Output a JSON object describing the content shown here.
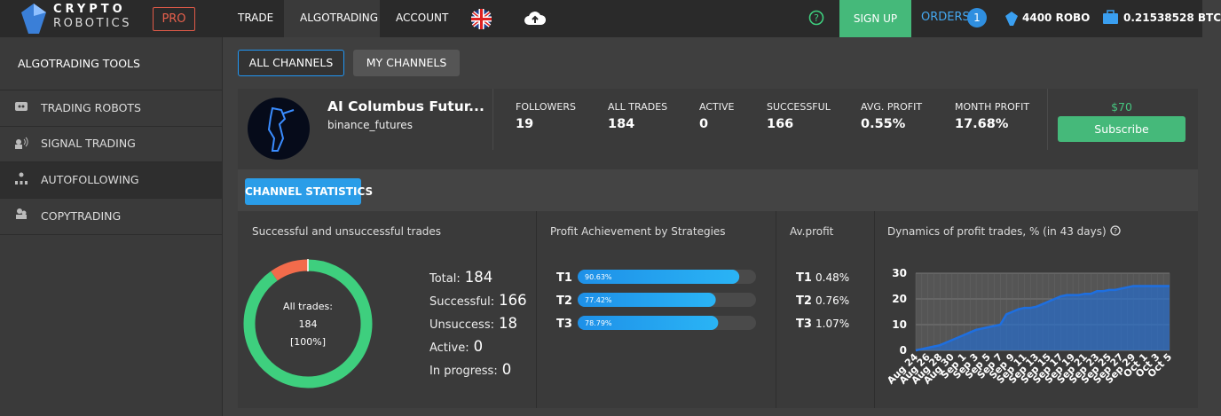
{
  "header": {
    "logo_top": "CRYPTO",
    "logo_bottom": "ROBOTICS",
    "pro": "PRO",
    "nav": [
      "TRADE",
      "ALGOTRADING",
      "ACCOUNT"
    ],
    "sign_up": "SIGN UP",
    "orders": "ORDERS",
    "orders_count": 1,
    "robo": "4400 ROBO",
    "btc": "0.21538528 BTC"
  },
  "sidebar": {
    "title": "ALGOTRADING TOOLS",
    "items": [
      "TRADING ROBOTS",
      "SIGNAL TRADING",
      "AUTOFOLLOWING",
      "COPYTRADING"
    ]
  },
  "tabs": [
    "ALL CHANNELS",
    "MY CHANNELS"
  ],
  "channel": {
    "name": "AI Columbus Futur...",
    "exchange": "binance_futures",
    "stats": [
      {
        "label": "FOLLOWERS",
        "value": "19"
      },
      {
        "label": "ALL TRADES",
        "value": "184"
      },
      {
        "label": "ACTIVE",
        "value": "0"
      },
      {
        "label": "SUCCESSFUL",
        "value": "166"
      },
      {
        "label": "AVG. PROFIT",
        "value": "0.55%"
      },
      {
        "label": "MONTH PROFIT",
        "value": "17.68%"
      }
    ],
    "price": "$70",
    "subscribe": "Subscribe"
  },
  "statistics": {
    "button": "CHANNEL STATISTICS",
    "trades": {
      "type": "pie",
      "title": "Successful and unsuccessful trades",
      "center_label": "All trades:",
      "center_value": 184,
      "center_percent": "[100%]",
      "rows": [
        {
          "label": "Total:",
          "value": 184
        },
        {
          "label": "Successful:",
          "value": 166,
          "color": "#3ecf7e"
        },
        {
          "label": "Unsuccess:",
          "value": 18,
          "color": "#f26b4b"
        },
        {
          "label": "Active:",
          "value": 0
        },
        {
          "label": "In progress:",
          "value": 0
        }
      ]
    },
    "strategies": {
      "type": "bar",
      "title": "Profit Achievement by Strategies",
      "categories": [
        "T1",
        "T2",
        "T3"
      ],
      "values": [
        90.63,
        77.42,
        78.79
      ],
      "value_labels": [
        "90.63%",
        "77.42%",
        "78.79%"
      ],
      "xlim": [
        0,
        100
      ],
      "color": "#1e90e8"
    },
    "avprofit": {
      "title": "Av.profit",
      "rows": [
        {
          "name": "T1",
          "value": "0.48%"
        },
        {
          "name": "T2",
          "value": "0.76%"
        },
        {
          "name": "T3",
          "value": "1.07%"
        }
      ]
    },
    "dynamics": {
      "type": "area",
      "title": "Dynamics of profit trades, % (in 43 days)",
      "color": "#1e6fe0",
      "categories": [
        "Aug 24",
        null,
        "Aug 26",
        null,
        "Aug 28",
        null,
        "Aug 30",
        null,
        "Sep 1",
        null,
        "Sep 3",
        null,
        "Sep 5",
        null,
        "Sep 7",
        null,
        "Sep 9",
        null,
        "Sep 11",
        null,
        "Sep 13",
        null,
        "Sep 15",
        null,
        "Sep 17",
        null,
        "Sep 19",
        null,
        "Sep 21",
        null,
        "Sep 23",
        null,
        "Sep 25",
        null,
        "Sep 27",
        null,
        "Sep 29",
        null,
        "Oct 1",
        null,
        "Oct 3",
        null,
        "Oct 5"
      ],
      "values": [
        0,
        0.5,
        1,
        1.5,
        2,
        3,
        4,
        5,
        6,
        7,
        8,
        8.5,
        9,
        9.5,
        10,
        14,
        15,
        16,
        16.5,
        16.5,
        17,
        18,
        19,
        20,
        21,
        21.5,
        21.5,
        21.5,
        22,
        22,
        23,
        23,
        23.5,
        23.5,
        24,
        24.5,
        25,
        25,
        25,
        25,
        25,
        25,
        25
      ],
      "ylim": [
        0,
        30
      ],
      "yticks": [
        0,
        10,
        20,
        30
      ],
      "grid": true
    }
  }
}
